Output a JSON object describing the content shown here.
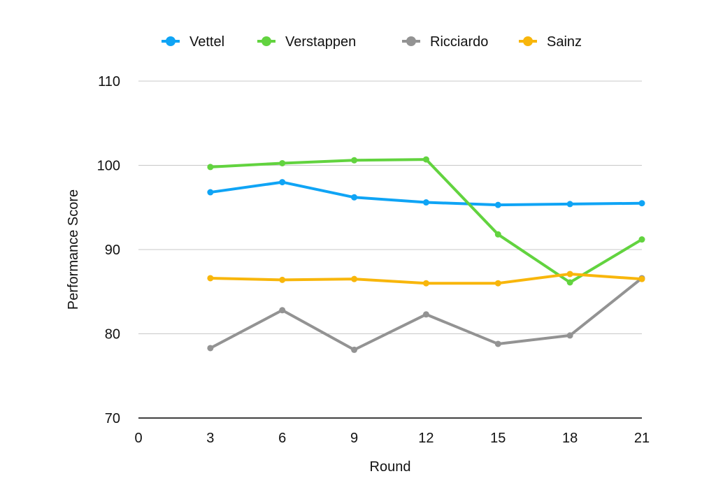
{
  "chart_data": {
    "type": "line",
    "title": "",
    "xlabel": "Round",
    "ylabel": "Performance Score",
    "x": [
      3,
      6,
      9,
      12,
      15,
      18,
      21
    ],
    "xticks": [
      0,
      3,
      6,
      9,
      12,
      15,
      18,
      21
    ],
    "yticks": [
      70,
      80,
      90,
      100,
      110
    ],
    "xlim": [
      0,
      21
    ],
    "ylim": [
      70,
      110
    ],
    "grid": "horizontal",
    "legend": "top",
    "series": [
      {
        "name": "Vettel",
        "color": "#0fa4f5",
        "values": [
          96.8,
          98.0,
          96.2,
          95.6,
          95.3,
          95.4,
          95.5
        ]
      },
      {
        "name": "Verstappen",
        "color": "#62d33f",
        "values": [
          99.8,
          100.25,
          100.6,
          100.7,
          91.8,
          86.1,
          91.2
        ]
      },
      {
        "name": "Ricciardo",
        "color": "#939393",
        "values": [
          78.3,
          82.8,
          78.1,
          82.3,
          78.8,
          79.8,
          86.6
        ]
      },
      {
        "name": "Sainz",
        "color": "#f8b60b",
        "values": [
          86.6,
          86.4,
          86.5,
          86.0,
          86.0,
          87.1,
          86.5
        ]
      }
    ]
  }
}
